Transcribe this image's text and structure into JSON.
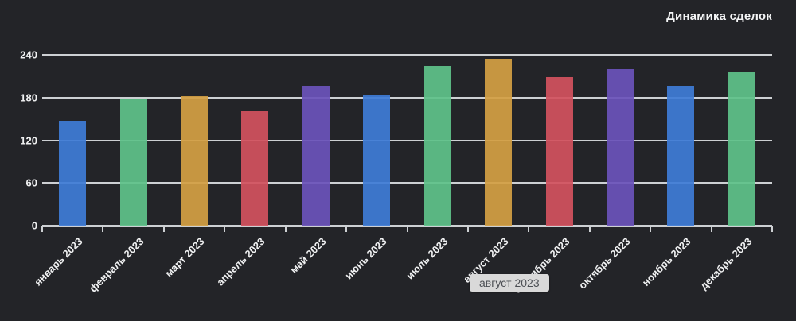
{
  "title": "Динамика сделок",
  "chart_data": {
    "type": "bar",
    "title": "Динамика сделок",
    "categories": [
      "январь 2023",
      "февраль 2023",
      "март 2023",
      "апрель 2023",
      "май 2023",
      "июнь 2023",
      "июль 2023",
      "август 2023",
      "сентябрь 2023",
      "октябрь 2023",
      "ноябрь 2023",
      "декабрь 2023"
    ],
    "values": [
      147,
      177,
      182,
      161,
      196,
      184,
      224,
      234,
      209,
      220,
      196,
      216
    ],
    "palette": [
      "#3e7cd6",
      "#5fc28a",
      "#d39f44",
      "#d2525f",
      "#6b53ba"
    ],
    "yticks": [
      0,
      60,
      120,
      180,
      240
    ],
    "ylim": [
      0,
      240
    ],
    "grid": true,
    "legend_position": "none",
    "xlabel": "",
    "ylabel": ""
  },
  "tooltip": {
    "text": "август 2023"
  },
  "colors": {
    "background": "#232428",
    "grid": "#cdd0d3",
    "axis": "#cdd0d3",
    "text": "#f0f1f2",
    "tooltip_bg": "#d9d9d9",
    "tooltip_text": "#4c4f54"
  }
}
